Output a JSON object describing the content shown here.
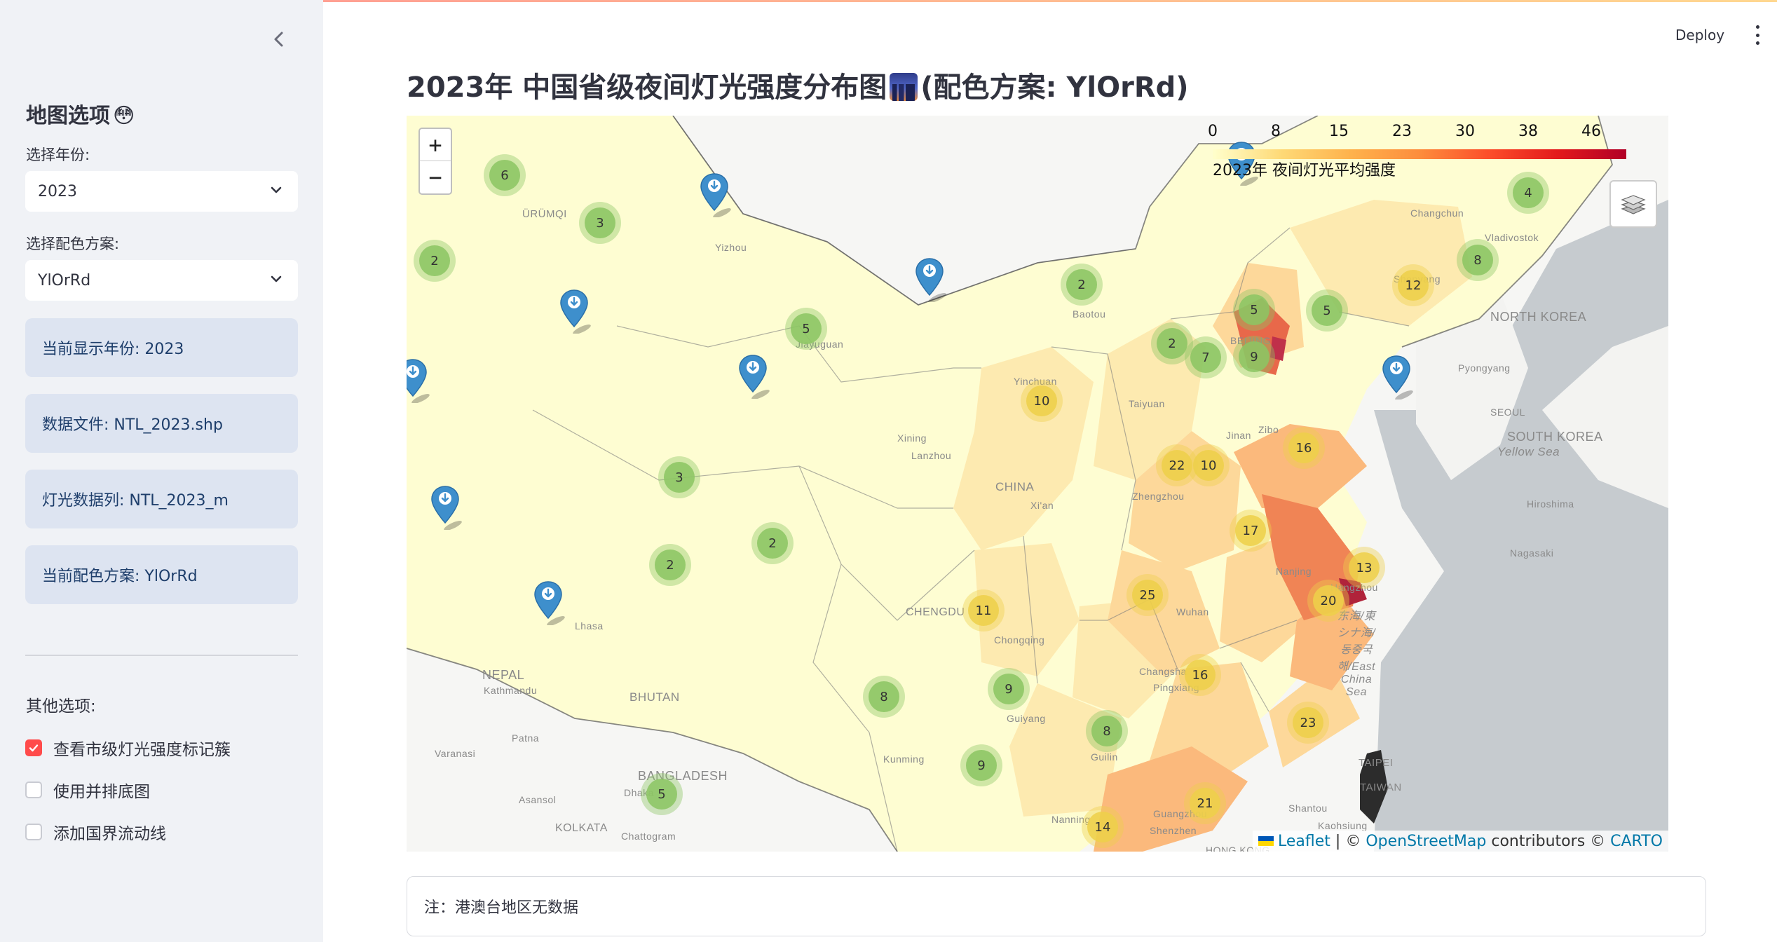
{
  "sidebar": {
    "collapse_icon": "chevron-left-icon",
    "title": "地图选项",
    "title_emoji": "😳",
    "year_label": "选择年份:",
    "year_value": "2023",
    "scheme_label": "选择配色方案:",
    "scheme_value": "YlOrRd",
    "info": {
      "year": "当前显示年份: 2023",
      "file": "数据文件: NTL_2023.shp",
      "column": "灯光数据列: NTL_2023_m",
      "scheme": "当前配色方案: YlOrRd"
    },
    "other_label": "其他选项:",
    "options": [
      {
        "label": "查看市级灯光强度标记簇",
        "checked": true
      },
      {
        "label": "使用并排底图",
        "checked": false
      },
      {
        "label": "添加国界流动线",
        "checked": false
      }
    ]
  },
  "header": {
    "deploy_label": "Deploy",
    "menu_icon": "kebab-menu-icon"
  },
  "main": {
    "title_prefix": "2023年 中国省级夜间灯光强度分布图",
    "title_emoji": "city-dusk-emoji",
    "title_suffix": "(配色方案: YlOrRd)",
    "note": "注：港澳台地区无数据"
  },
  "map": {
    "zoom_in": "+",
    "zoom_out": "−",
    "legend": {
      "ticks": [
        "0",
        "8",
        "15",
        "23",
        "30",
        "38",
        "46"
      ],
      "caption": "2023年 夜间灯光平均强度"
    },
    "attribution": {
      "leaflet": "Leaflet",
      "sep": " | © ",
      "osm": "OpenStreetMap",
      "contrib": " contributors © ",
      "carto": "CARTO"
    },
    "clusters": [
      "6",
      "3",
      "2",
      "2",
      "5",
      "2",
      "5",
      "7",
      "9",
      "10",
      "3",
      "10",
      "22",
      "16",
      "17",
      "2",
      "2",
      "11",
      "25",
      "13",
      "20",
      "8",
      "9",
      "16",
      "8",
      "23",
      "9",
      "5",
      "21",
      "14",
      "12",
      "8",
      "4",
      "5"
    ],
    "place_labels": [
      "ÜRÜMQI",
      "Yizhou",
      "Jiayuguan",
      "Baotou",
      "BEIJING",
      "Yinchuan",
      "Taiyuan",
      "Xining",
      "Lanzhou",
      "CHINA",
      "Xi'an",
      "Jinan",
      "Zibo",
      "Zhengzhou",
      "Nanjing",
      "Hangzhou",
      "Wuhan",
      "CHENGDU",
      "Chongqing",
      "Changsha",
      "Pingxiang",
      "Guiyang",
      "Kunming",
      "Guilin",
      "Nanning",
      "Guangzhou",
      "Shenzhen",
      "HONG KONG",
      "Shantou",
      "Kaohsiung",
      "TAIPEI",
      "TAIWAN",
      "Lhasa",
      "NEPAL",
      "Kathmandu",
      "BHUTAN",
      "Patna",
      "Varanasi",
      "BANGLADESH",
      "Dhaka",
      "Asansol",
      "KOLKATA",
      "Chattogram",
      "NORTH KOREA",
      "Pyongyang",
      "SEOUL",
      "SOUTH KOREA",
      "Yellow Sea",
      "Hiroshima",
      "Nagasaki",
      "东海/東シナ海/동중국해/East China Sea",
      "Changchun",
      "Vladivostok",
      "Shenyang"
    ],
    "colors": {
      "low": "#fefdd2",
      "mid_low": "#fdeab0",
      "mid": "#fdd89a",
      "mid_high": "#fbb97c",
      "high": "#f08455",
      "max": "#b0233a",
      "sea": "#c6cbcf",
      "land_out": "#f6f6f4",
      "cluster_green": "#8cc563",
      "cluster_yellow": "#eed04a",
      "marker_blue": "#3e8fcc"
    }
  }
}
